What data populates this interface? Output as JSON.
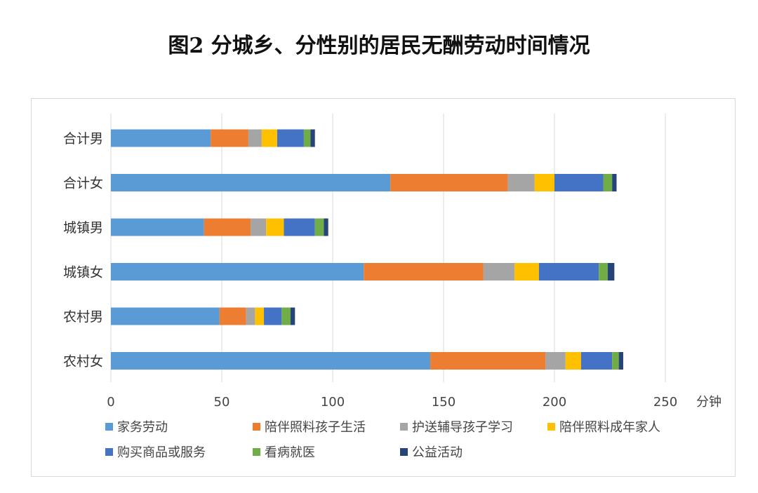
{
  "chart_data": {
    "type": "bar",
    "orientation": "horizontal",
    "stacked": true,
    "title": "图2 分城乡、分性别的居民无酬劳动时间情况",
    "categories": [
      "合计男",
      "合计女",
      "城镇男",
      "城镇女",
      "农村男",
      "农村女"
    ],
    "xlabel": "分钟",
    "xlim": [
      0,
      250
    ],
    "xticks": [
      0,
      50,
      100,
      150,
      200,
      250
    ],
    "grid": true,
    "legend_position": "bottom",
    "series": [
      {
        "name": "家务劳动",
        "color": "#5B9BD5",
        "values": [
          45,
          126,
          42,
          114,
          49,
          144
        ]
      },
      {
        "name": "陪伴照料孩子生活",
        "color": "#ED7D31",
        "values": [
          17,
          53,
          21,
          54,
          12,
          52
        ]
      },
      {
        "name": "护送辅导孩子学习",
        "color": "#A5A5A5",
        "values": [
          6,
          12,
          7,
          14,
          4,
          9
        ]
      },
      {
        "name": "陪伴照料成年家人",
        "color": "#FFC000",
        "values": [
          7,
          9,
          8,
          11,
          4,
          7
        ]
      },
      {
        "name": "购买商品或服务",
        "color": "#4472C4",
        "values": [
          12,
          22,
          14,
          27,
          8,
          14
        ]
      },
      {
        "name": "看病就医",
        "color": "#70AD47",
        "values": [
          3,
          4,
          4,
          4,
          4,
          3
        ]
      },
      {
        "name": "公益活动",
        "color": "#264478",
        "values": [
          2,
          2,
          2,
          3,
          2,
          2
        ]
      }
    ]
  }
}
